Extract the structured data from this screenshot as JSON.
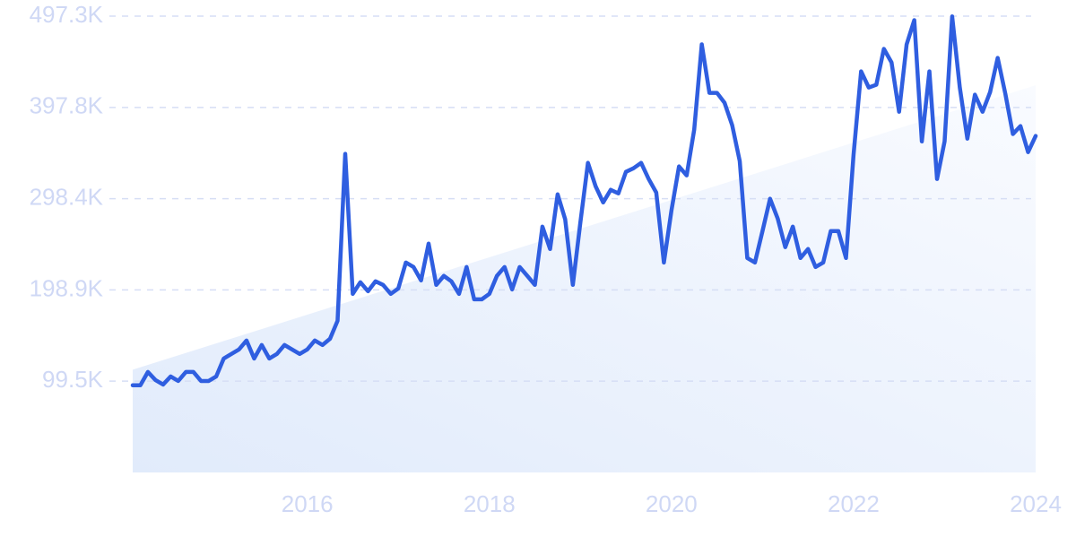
{
  "chart_data": {
    "type": "line",
    "x": [
      2014.083,
      2014.167,
      2014.25,
      2014.333,
      2014.417,
      2014.5,
      2014.583,
      2014.667,
      2014.75,
      2014.833,
      2014.917,
      2015,
      2015.083,
      2015.167,
      2015.25,
      2015.333,
      2015.417,
      2015.5,
      2015.583,
      2015.667,
      2015.75,
      2015.833,
      2015.917,
      2016,
      2016.083,
      2016.167,
      2016.25,
      2016.333,
      2016.417,
      2016.5,
      2016.583,
      2016.667,
      2016.75,
      2016.833,
      2016.917,
      2017,
      2017.083,
      2017.167,
      2017.25,
      2017.333,
      2017.417,
      2017.5,
      2017.583,
      2017.667,
      2017.75,
      2017.833,
      2017.917,
      2018,
      2018.083,
      2018.167,
      2018.25,
      2018.333,
      2018.417,
      2018.5,
      2018.583,
      2018.667,
      2018.75,
      2018.833,
      2018.917,
      2019,
      2019.083,
      2019.167,
      2019.25,
      2019.333,
      2019.417,
      2019.5,
      2019.583,
      2019.667,
      2019.75,
      2019.833,
      2019.917,
      2020,
      2020.083,
      2020.167,
      2020.25,
      2020.333,
      2020.417,
      2020.5,
      2020.583,
      2020.667,
      2020.75,
      2020.833,
      2020.917,
      2021,
      2021.083,
      2021.167,
      2021.25,
      2021.333,
      2021.417,
      2021.5,
      2021.583,
      2021.667,
      2021.75,
      2021.833,
      2021.917,
      2022,
      2022.083,
      2022.167,
      2022.25,
      2022.333,
      2022.417,
      2022.5,
      2022.583,
      2022.667,
      2022.75,
      2022.833,
      2022.917,
      2023,
      2023.083,
      2023.167,
      2023.25,
      2023.333,
      2023.417,
      2023.5,
      2023.583,
      2023.667,
      2023.75,
      2023.833,
      2023.917,
      2024
    ],
    "values": [
      95000,
      95000,
      109500,
      100700,
      95800,
      104600,
      99700,
      109500,
      109500,
      99700,
      99700,
      104600,
      124200,
      129100,
      134000,
      143800,
      124200,
      138900,
      124200,
      129100,
      138900,
      134000,
      129100,
      134000,
      143800,
      138900,
      145700,
      165300,
      347200,
      194600,
      207300,
      197500,
      208300,
      204400,
      194600,
      200500,
      228800,
      223900,
      209300,
      249400,
      204400,
      214200,
      208300,
      194600,
      223900,
      188700,
      188700,
      194600,
      214200,
      223900,
      199500,
      223900,
      214200,
      204400,
      267900,
      243500,
      303100,
      275800,
      204400,
      272800,
      337400,
      311900,
      294300,
      308000,
      304100,
      327600,
      331500,
      337400,
      319800,
      305100,
      228800,
      285500,
      333500,
      323700,
      373600,
      466500,
      413700,
      413700,
      402900,
      378400,
      339300,
      233700,
      228800,
      263100,
      298300,
      276700,
      245500,
      267900,
      233700,
      243500,
      223900,
      228800,
      263100,
      263100,
      233700,
      346200,
      437100,
      419500,
      422500,
      461600,
      446900,
      393100,
      466500,
      492900,
      360800,
      437100,
      319800,
      360800,
      497000,
      419500,
      363800,
      411700,
      393100,
      414600,
      451800,
      412700,
      368800,
      377500,
      349100,
      366700
    ],
    "color": "#2f5ee0",
    "trend": {
      "x": [
        2014.083,
        2024
      ],
      "values": [
        112000,
        422000
      ]
    },
    "xlim": [
      2014.083,
      2024
    ],
    "xticks": [
      2016,
      2018,
      2020,
      2022,
      2024
    ],
    "ylim": [
      0,
      497300
    ],
    "yticks": [
      {
        "value": 99500,
        "label": "99.5K"
      },
      {
        "value": 198900,
        "label": "198.9K"
      },
      {
        "value": 298400,
        "label": "298.4K"
      },
      {
        "value": 397800,
        "label": "397.8K"
      },
      {
        "value": 497300,
        "label": "497.3K"
      }
    ],
    "grid": true
  }
}
